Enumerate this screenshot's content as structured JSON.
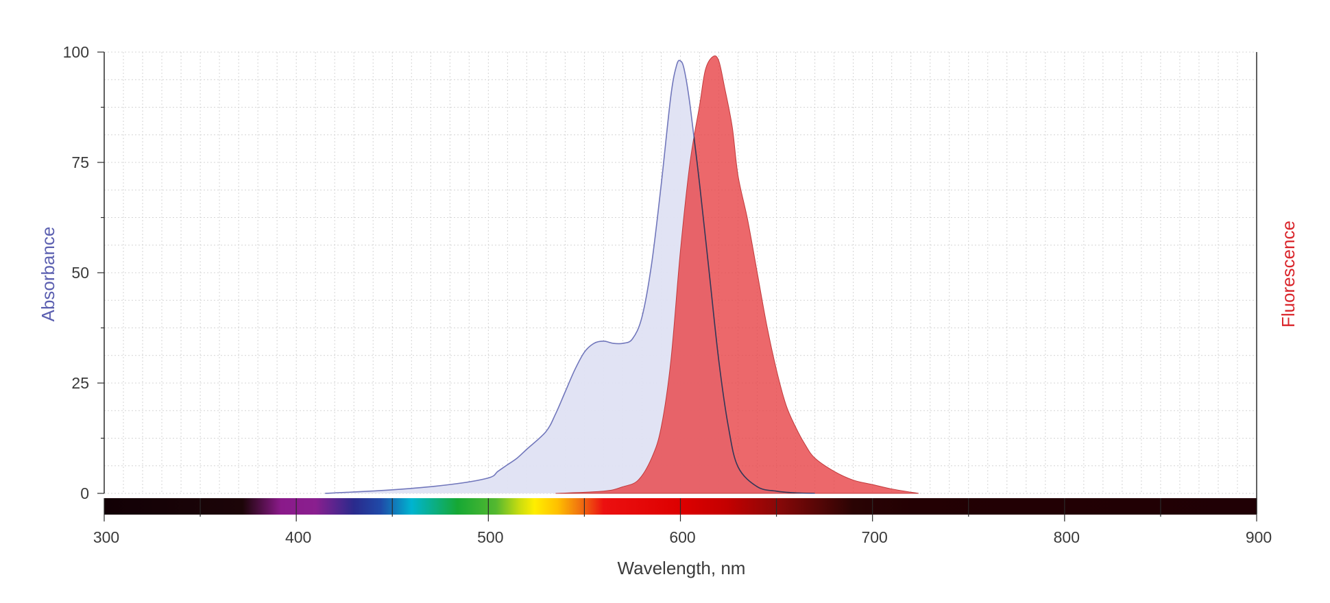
{
  "chart_data": {
    "type": "area",
    "title": "",
    "xlabel": "Wavelength, nm",
    "ylabel_left": "Absorbance",
    "ylabel_right": "Fluorescence",
    "xlim": [
      300,
      900
    ],
    "ylim": [
      0,
      100
    ],
    "x_ticks": [
      300,
      400,
      500,
      600,
      700,
      800,
      900
    ],
    "y_ticks": [
      0,
      25,
      50,
      75,
      100
    ],
    "grid": true,
    "colors": {
      "absorbance_line": "#7076bb",
      "absorbance_fill": "#dfe1f3",
      "fluorescence_line": "#c0393b",
      "fluorescence_fill": "#e8474a",
      "overlap_line": "#3a3550",
      "absorbance_label": "#5b5fb0",
      "fluorescence_label": "#d9242a",
      "text": "#3a3a3a"
    },
    "series": [
      {
        "name": "Absorbance",
        "x": [
          415,
          450,
          480,
          500,
          505,
          510,
          515,
          520,
          530,
          535,
          540,
          545,
          550,
          555,
          560,
          565,
          570,
          575,
          580,
          585,
          590,
          595,
          598,
          600,
          602,
          605,
          610,
          615,
          620,
          625,
          630,
          640,
          650,
          660,
          670
        ],
        "y": [
          0,
          0.8,
          2,
          3.5,
          5,
          6.5,
          8,
          10,
          14,
          18,
          23,
          28,
          32,
          34,
          34.5,
          34,
          34,
          35,
          40,
          52,
          70,
          90,
          97,
          98,
          96,
          88,
          70,
          50,
          30,
          15,
          6,
          1.5,
          0.5,
          0.1,
          0
        ]
      },
      {
        "name": "Fluorescence",
        "x": [
          535,
          560,
          570,
          578,
          585,
          590,
          595,
          600,
          605,
          610,
          613,
          617,
          620,
          623,
          627,
          630,
          635,
          640,
          645,
          650,
          655,
          660,
          665,
          670,
          680,
          690,
          700,
          710,
          724
        ],
        "y": [
          0,
          0.5,
          1.5,
          3,
          8,
          15,
          30,
          55,
          75,
          88,
          96,
          99,
          98,
          92,
          83,
          72,
          62,
          50,
          38,
          28,
          20,
          15,
          11,
          8,
          5,
          3,
          2,
          1,
          0
        ]
      }
    ]
  }
}
